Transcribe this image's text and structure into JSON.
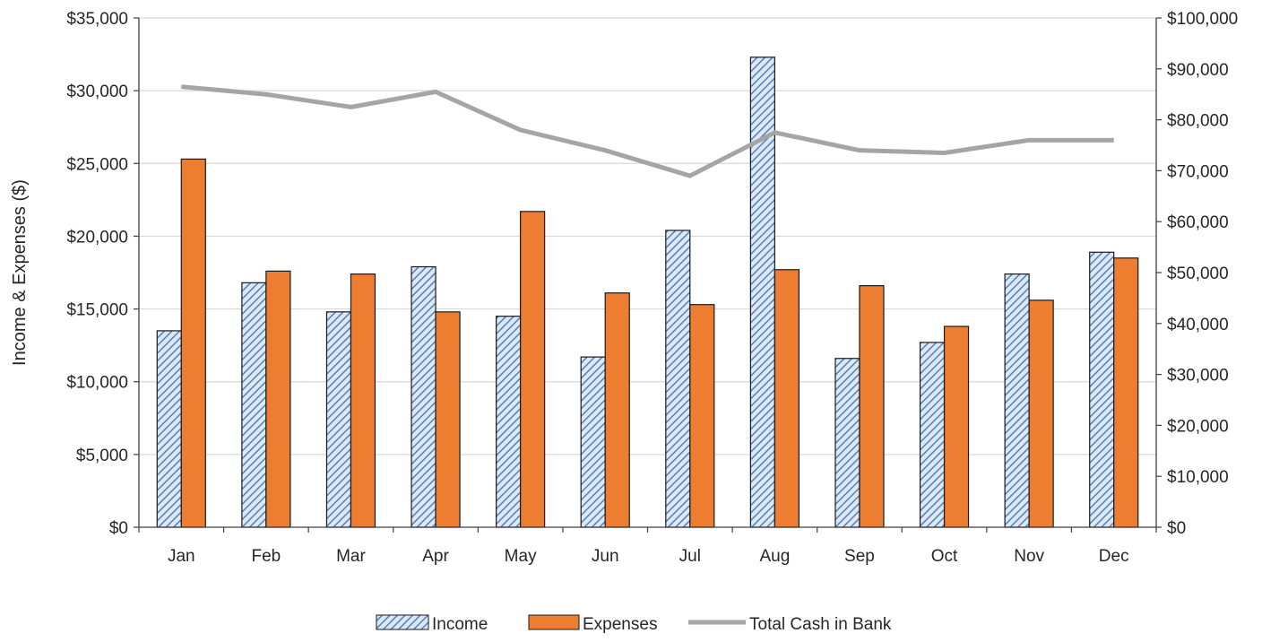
{
  "chart_data": {
    "type": "bar",
    "categories": [
      "Jan",
      "Feb",
      "Mar",
      "Apr",
      "May",
      "Jun",
      "Jul",
      "Aug",
      "Sep",
      "Oct",
      "Nov",
      "Dec"
    ],
    "series": [
      {
        "name": "Income",
        "type": "bar",
        "axis": "left",
        "color": "#4f81bd",
        "fill_pattern": "diagonal-hatch",
        "values": [
          13500,
          16800,
          14800,
          17900,
          14500,
          11700,
          20400,
          32300,
          11600,
          12700,
          17400,
          18900
        ]
      },
      {
        "name": "Expenses",
        "type": "bar",
        "axis": "left",
        "color": "#ed7d31",
        "values": [
          25300,
          17600,
          17400,
          14800,
          21700,
          16100,
          15300,
          17700,
          16600,
          13800,
          15600,
          18500
        ]
      },
      {
        "name": "Total Cash in Bank",
        "type": "line",
        "axis": "right",
        "color": "#a5a5a5",
        "values": [
          86500,
          85000,
          82500,
          85500,
          78000,
          74000,
          69000,
          77500,
          74000,
          73500,
          76000,
          76000
        ]
      }
    ],
    "ylabel": "Income & Expenses ($)",
    "ylim": [
      0,
      35000
    ],
    "y_ticks": [
      0,
      5000,
      10000,
      15000,
      20000,
      25000,
      30000,
      35000
    ],
    "y_tick_labels": [
      "$0",
      "$5,000",
      "$10,000",
      "$15,000",
      "$20,000",
      "$25,000",
      "$30,000",
      "$35,000"
    ],
    "y2lim": [
      0,
      100000
    ],
    "y2_ticks": [
      0,
      10000,
      20000,
      30000,
      40000,
      50000,
      60000,
      70000,
      80000,
      90000,
      100000
    ],
    "y2_tick_labels": [
      "$0",
      "$10,000",
      "$20,000",
      "$30,000",
      "$40,000",
      "$50,000",
      "$60,000",
      "$70,000",
      "$80,000",
      "$90,000",
      "$100,000"
    ],
    "grid": true,
    "legend_position": "bottom"
  }
}
